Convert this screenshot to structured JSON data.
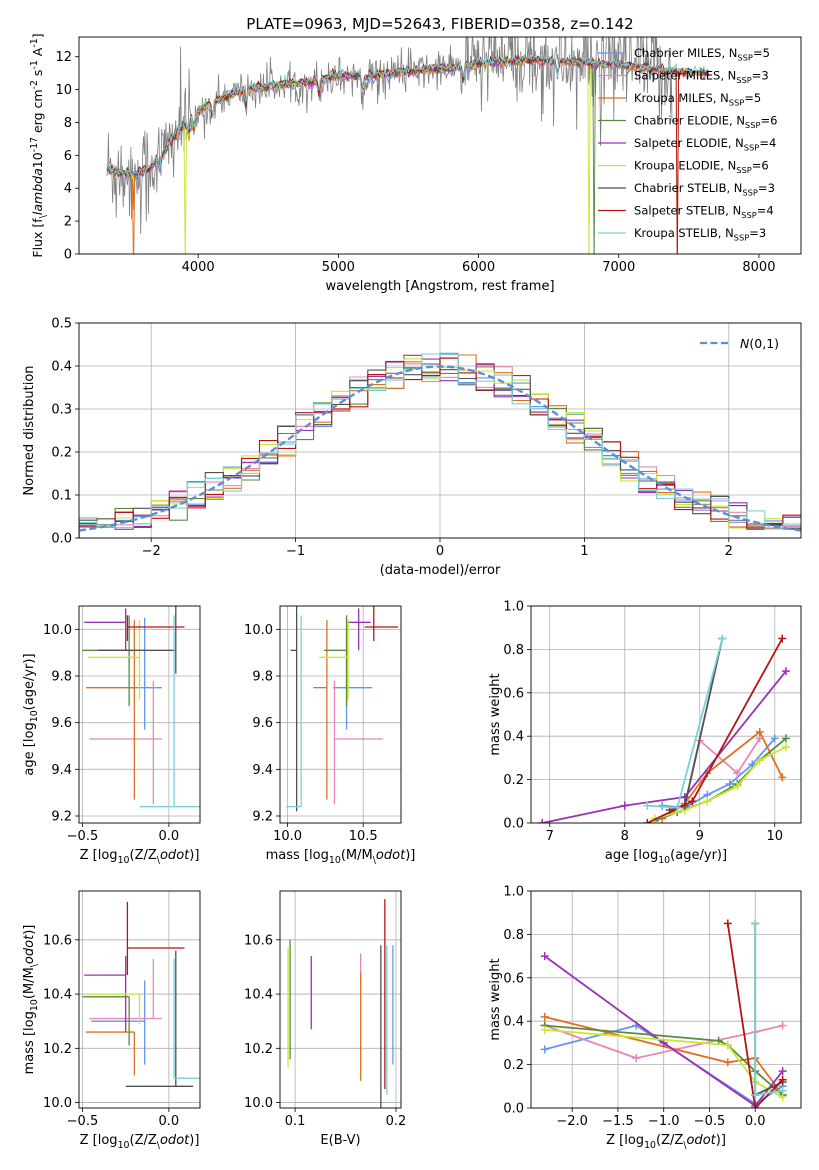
{
  "figure": {
    "title": "PLATE=0963, MJD=52643, FIBERID=0358, z=0.142"
  },
  "colors": {
    "Chabrier MILES": "#6495ed",
    "Salpeter MILES": "#e887b8",
    "Kroupa MILES": "#e07020",
    "Chabrier ELODIE": "#5a8a3c",
    "Salpeter ELODIE": "#9932b4",
    "Kroupa ELODIE": "#c8e632",
    "Chabrier STELIB": "#505050",
    "Salpeter STELIB": "#b41414",
    "Kroupa STELIB": "#78d2d7",
    "normal_fit": "#5b8fd6"
  },
  "chart_data": [
    {
      "id": "spectrum",
      "type": "line",
      "xlabel": "wavelength [Angstrom, rest frame]",
      "ylabel": "Flux [f$_\\lambda$10$^{-17}$ erg cm$^{-2}$ s$^{-1}$ A$^{-1}$]",
      "xlim": [
        3150,
        8300
      ],
      "ylim": [
        0,
        13.2
      ],
      "xticks": [
        4000,
        5000,
        6000,
        7000,
        8000
      ],
      "yticks": [
        0,
        2,
        4,
        6,
        8,
        10,
        12
      ],
      "grid": false,
      "legend_position": "upper right",
      "legend": [
        {
          "label": "Chabrier MILES, N$_{SSP}$=5",
          "model": "Chabrier MILES"
        },
        {
          "label": "Salpeter MILES, N$_{SSP}$=3",
          "model": "Salpeter MILES"
        },
        {
          "label": "Kroupa MILES, N$_{SSP}$=5",
          "model": "Kroupa MILES"
        },
        {
          "label": "Chabrier ELODIE, N$_{SSP}$=6",
          "model": "Chabrier ELODIE"
        },
        {
          "label": "Salpeter ELODIE, N$_{SSP}$=4",
          "model": "Salpeter ELODIE"
        },
        {
          "label": "Kroupa ELODIE, N$_{SSP}$=6",
          "model": "Kroupa ELODIE"
        },
        {
          "label": "Chabrier STELIB, N$_{SSP}$=3",
          "model": "Chabrier STELIB"
        },
        {
          "label": "Salpeter STELIB, N$_{SSP}$=4",
          "model": "Salpeter STELIB"
        },
        {
          "label": "Kroupa STELIB, N$_{SSP}$=3",
          "model": "Kroupa STELIB"
        }
      ],
      "continuum": {
        "x": [
          3350,
          3450,
          3550,
          3650,
          3750,
          3850,
          3950,
          4050,
          4200,
          4400,
          4600,
          4800,
          5000,
          5200,
          5400,
          5600,
          5800,
          6000,
          6200,
          6400,
          6600,
          6800,
          7000,
          7200,
          7400,
          7600
        ],
        "y": [
          5.2,
          4.9,
          4.8,
          5.2,
          6.2,
          7.4,
          8.2,
          9.0,
          9.6,
          10.1,
          10.3,
          10.4,
          10.9,
          10.8,
          11.0,
          11.2,
          11.3,
          11.6,
          11.7,
          11.8,
          11.7,
          11.6,
          11.5,
          11.3,
          11.1,
          11.0
        ]
      },
      "model_range": [
        3350,
        7650
      ],
      "data_range": [
        3350,
        7380
      ]
    },
    {
      "id": "residuals",
      "type": "histogram",
      "xlabel": "(data-model)/error",
      "ylabel": "Normed distribution",
      "xlim": [
        -2.5,
        2.5
      ],
      "ylim": [
        0,
        0.5
      ],
      "xticks": [
        -2,
        -1,
        0,
        1,
        2
      ],
      "yticks": [
        0.0,
        0.1,
        0.2,
        0.3,
        0.4,
        0.5
      ],
      "grid": true,
      "legend_position": "upper right",
      "legend": [
        {
          "label": "$\\mathcal{N}(0,1)$",
          "style": "dashed"
        }
      ],
      "bin_width": 0.125,
      "bin_start": -2.5
    },
    {
      "id": "age_vs_Z",
      "type": "scatter",
      "xlabel": "Z [log$_{10}$(Z/Z$_\\odot$)]",
      "ylabel": "age  [log$_{10}$(age/yr)]",
      "xlim": [
        -0.52,
        0.18
      ],
      "ylim": [
        9.17,
        10.1
      ],
      "xticks": [
        -0.5,
        0.0
      ],
      "yticks": [
        9.2,
        9.4,
        9.6,
        9.8,
        10.0
      ],
      "grid": true,
      "points": [
        {
          "model": "Chabrier MILES",
          "x": -0.14,
          "xerr": [
            0.1,
            0.1
          ],
          "y": 9.75,
          "yerr": [
            0.18,
            0.3
          ]
        },
        {
          "model": "Salpeter MILES",
          "x": -0.09,
          "xerr": [
            0.37,
            0.05
          ],
          "y": 9.53,
          "yerr": [
            0.28,
            0.25
          ]
        },
        {
          "model": "Kroupa MILES",
          "x": -0.2,
          "xerr": [
            0.28,
            0.0
          ],
          "y": 9.75,
          "yerr": [
            0.48,
            0.29
          ]
        },
        {
          "model": "Chabrier ELODIE",
          "x": -0.23,
          "xerr": [
            0.27,
            0.0
          ],
          "y": 9.91,
          "yerr": [
            0.24,
            0.15
          ]
        },
        {
          "model": "Salpeter ELODIE",
          "x": -0.25,
          "xerr": [
            0.24,
            0.0
          ],
          "y": 10.03,
          "yerr": [
            0.12,
            0.06
          ]
        },
        {
          "model": "Kroupa ELODIE",
          "x": -0.17,
          "xerr": [
            0.3,
            0.0
          ],
          "y": 9.88,
          "yerr": [
            0.18,
            0.16
          ]
        },
        {
          "model": "Chabrier STELIB",
          "x": 0.04,
          "xerr": [
            0.45,
            0.0
          ],
          "y": 9.91,
          "yerr": [
            0.1,
            0.21
          ]
        },
        {
          "model": "Salpeter STELIB",
          "x": -0.24,
          "xerr": [
            0.0,
            0.33
          ],
          "y": 10.01,
          "yerr": [
            0.06,
            0.05
          ]
        },
        {
          "model": "Kroupa STELIB",
          "x": 0.03,
          "xerr": [
            0.2,
            0.15
          ],
          "y": 9.24,
          "yerr": [
            0.0,
            0.82
          ]
        }
      ]
    },
    {
      "id": "age_vs_mass",
      "type": "scatter",
      "xlabel": "mass [log$_{10}$(M/M$_\\odot$)]",
      "ylabel": "",
      "xlim": [
        9.95,
        10.75
      ],
      "ylim": [
        9.17,
        10.1
      ],
      "xticks": [
        10.0,
        10.5
      ],
      "yticks": [
        9.2,
        9.4,
        9.6,
        9.8,
        10.0
      ],
      "grid": true,
      "points": [
        {
          "model": "Chabrier MILES",
          "x": 10.39,
          "xerr": [
            0.09,
            0.17
          ],
          "y": 9.75,
          "yerr": [
            0.18,
            0.3
          ]
        },
        {
          "model": "Salpeter MILES",
          "x": 10.31,
          "xerr": [
            0.0,
            0.32
          ],
          "y": 9.53,
          "yerr": [
            0.28,
            0.25
          ]
        },
        {
          "model": "Kroupa MILES",
          "x": 10.26,
          "xerr": [
            0.09,
            0.0
          ],
          "y": 9.75,
          "yerr": [
            0.48,
            0.29
          ]
        },
        {
          "model": "Chabrier ELODIE",
          "x": 10.39,
          "xerr": [
            0.15,
            0.0
          ],
          "y": 9.91,
          "yerr": [
            0.24,
            0.15
          ]
        },
        {
          "model": "Salpeter ELODIE",
          "x": 10.47,
          "xerr": [
            0.07,
            0.08
          ],
          "y": 10.03,
          "yerr": [
            0.12,
            0.06
          ]
        },
        {
          "model": "Kroupa ELODIE",
          "x": 10.4,
          "xerr": [
            0.19,
            0.0
          ],
          "y": 9.88,
          "yerr": [
            0.18,
            0.16
          ]
        },
        {
          "model": "Chabrier STELIB",
          "x": 10.06,
          "xerr": [
            0.04,
            0.0
          ],
          "y": 9.91,
          "yerr": [
            0.69,
            0.21
          ]
        },
        {
          "model": "Salpeter STELIB",
          "x": 10.57,
          "xerr": [
            0.06,
            0.16
          ],
          "y": 10.01,
          "yerr": [
            0.06,
            0.12
          ]
        },
        {
          "model": "Kroupa STELIB",
          "x": 10.09,
          "xerr": [
            0.1,
            0.0
          ],
          "y": 9.24,
          "yerr": [
            0.0,
            0.82
          ]
        }
      ]
    },
    {
      "id": "weight_vs_age",
      "type": "line",
      "xlabel": "age  [log$_{10}$(age/yr)]",
      "ylabel": "mass weight",
      "xlim": [
        6.75,
        10.35
      ],
      "ylim": [
        0,
        1.0
      ],
      "xticks": [
        7,
        8,
        9,
        10
      ],
      "yticks": [
        0.0,
        0.2,
        0.4,
        0.6,
        0.8,
        1.0
      ],
      "grid": true,
      "series": [
        {
          "model": "Chabrier MILES",
          "x": [
            8.5,
            8.8,
            9.1,
            9.4,
            9.7,
            10.0
          ],
          "y": [
            0.08,
            0.07,
            0.13,
            0.18,
            0.27,
            0.39
          ]
        },
        {
          "model": "Salpeter MILES",
          "x": [
            8.8,
            9.0,
            9.5,
            9.8
          ],
          "y": [
            0.08,
            0.38,
            0.23,
            0.39
          ]
        },
        {
          "model": "Kroupa MILES",
          "x": [
            8.5,
            8.8,
            9.1,
            9.8,
            10.1
          ],
          "y": [
            0.02,
            0.09,
            0.23,
            0.42,
            0.21
          ]
        },
        {
          "model": "Chabrier ELODIE",
          "x": [
            8.4,
            8.7,
            9.1,
            9.5,
            9.8,
            10.15
          ],
          "y": [
            0.01,
            0.05,
            0.1,
            0.18,
            0.29,
            0.39
          ]
        },
        {
          "model": "Salpeter ELODIE",
          "x": [
            6.9,
            8.0,
            8.8,
            10.15
          ],
          "y": [
            0.0,
            0.08,
            0.12,
            0.7
          ]
        },
        {
          "model": "Kroupa ELODIE",
          "x": [
            8.4,
            8.8,
            9.1,
            9.5,
            9.8,
            10.15
          ],
          "y": [
            0.02,
            0.06,
            0.1,
            0.17,
            0.29,
            0.35
          ]
        },
        {
          "model": "Chabrier STELIB",
          "x": [
            8.6,
            8.8,
            9.3
          ],
          "y": [
            0.06,
            0.08,
            0.85
          ]
        },
        {
          "model": "Salpeter STELIB",
          "x": [
            8.3,
            8.9,
            10.1
          ],
          "y": [
            0.0,
            0.1,
            0.85
          ]
        },
        {
          "model": "Kroupa STELIB",
          "x": [
            8.3,
            8.7,
            9.3
          ],
          "y": [
            0.08,
            0.07,
            0.85
          ]
        }
      ]
    },
    {
      "id": "mass_vs_Z",
      "type": "scatter",
      "xlabel": "Z [log$_{10}$(Z/Z$_\\odot$)]",
      "ylabel": "mass [log$_{10}$(M/M$_\\odot$)]",
      "xlim": [
        -0.52,
        0.18
      ],
      "ylim": [
        9.98,
        10.78
      ],
      "xticks": [
        -0.5,
        0.0
      ],
      "yticks": [
        10.0,
        10.2,
        10.4,
        10.6
      ],
      "grid": true,
      "points": [
        {
          "model": "Chabrier MILES",
          "x": -0.14,
          "xerr": [
            0.31,
            0.0
          ],
          "y": 10.3,
          "yerr": [
            0.16,
            0.15
          ]
        },
        {
          "model": "Salpeter MILES",
          "x": -0.09,
          "xerr": [
            0.37,
            0.05
          ],
          "y": 10.31,
          "yerr": [
            0.0,
            0.22
          ]
        },
        {
          "model": "Kroupa MILES",
          "x": -0.2,
          "xerr": [
            0.28,
            0.0
          ],
          "y": 10.26,
          "yerr": [
            0.16,
            0.0
          ]
        },
        {
          "model": "Chabrier ELODIE",
          "x": -0.23,
          "xerr": [
            0.27,
            0.0
          ],
          "y": 10.39,
          "yerr": [
            0.18,
            0.0
          ]
        },
        {
          "model": "Salpeter ELODIE",
          "x": -0.25,
          "xerr": [
            0.24,
            0.0
          ],
          "y": 10.47,
          "yerr": [
            0.21,
            0.07
          ]
        },
        {
          "model": "Kroupa ELODIE",
          "x": -0.17,
          "xerr": [
            0.3,
            0.0
          ],
          "y": 10.4,
          "yerr": [
            0.11,
            0.0
          ]
        },
        {
          "model": "Chabrier STELIB",
          "x": 0.04,
          "xerr": [
            0.29,
            0.1
          ],
          "y": 10.06,
          "yerr": [
            0.0,
            0.5
          ]
        },
        {
          "model": "Salpeter STELIB",
          "x": -0.24,
          "xerr": [
            0.0,
            0.33
          ],
          "y": 10.57,
          "yerr": [
            0.1,
            0.17
          ]
        },
        {
          "model": "Kroupa STELIB",
          "x": 0.03,
          "xerr": [
            0.0,
            0.15
          ],
          "y": 10.09,
          "yerr": [
            0.0,
            0.44
          ]
        }
      ]
    },
    {
      "id": "mass_vs_EBV",
      "type": "scatter",
      "xlabel": "E(B-V)",
      "ylabel": "",
      "xlim": [
        0.085,
        0.205
      ],
      "ylim": [
        9.98,
        10.78
      ],
      "xticks": [
        0.1,
        0.2
      ],
      "yticks": [
        10.0,
        10.2,
        10.4,
        10.6
      ],
      "grid": true,
      "points": [
        {
          "model": "Chabrier MILES",
          "x": 0.197,
          "y": 10.36,
          "yerr": [
            0.22,
            0.22
          ]
        },
        {
          "model": "Salpeter MILES",
          "x": 0.165,
          "y": 10.55,
          "yerr": [
            0.1,
            0.0
          ]
        },
        {
          "model": "Kroupa MILES",
          "x": 0.165,
          "y": 10.3,
          "yerr": [
            0.22,
            0.18
          ]
        },
        {
          "model": "Chabrier ELODIE",
          "x": 0.095,
          "y": 10.38,
          "yerr": [
            0.22,
            0.22
          ]
        },
        {
          "model": "Salpeter ELODIE",
          "x": 0.116,
          "y": 10.41,
          "yerr": [
            0.14,
            0.13
          ]
        },
        {
          "model": "Kroupa ELODIE",
          "x": 0.093,
          "y": 10.37,
          "yerr": [
            0.24,
            0.2
          ]
        },
        {
          "model": "Chabrier STELIB",
          "x": 0.185,
          "y": 10.28,
          "yerr": [
            0.3,
            0.3
          ]
        },
        {
          "model": "Salpeter STELIB",
          "x": 0.189,
          "y": 10.49,
          "yerr": [
            0.44,
            0.26
          ]
        },
        {
          "model": "Kroupa STELIB",
          "x": 0.191,
          "y": 10.3,
          "yerr": [
            0.27,
            0.28
          ]
        }
      ]
    },
    {
      "id": "weight_vs_Z",
      "type": "line",
      "xlabel": "Z [log$_{10}$(Z/Z$_\\odot$)]",
      "ylabel": "mass weight",
      "xlim": [
        -2.45,
        0.5
      ],
      "ylim": [
        0,
        1.0
      ],
      "xticks": [
        -2.0,
        -1.5,
        -1.0,
        -0.5,
        0.0
      ],
      "yticks": [
        0.0,
        0.2,
        0.4,
        0.6,
        0.8,
        1.0
      ],
      "grid": true,
      "series": [
        {
          "model": "Chabrier MILES",
          "x": [
            -2.3,
            -1.3,
            0.0,
            0.3
          ],
          "y": [
            0.27,
            0.38,
            0.02,
            0.1
          ]
        },
        {
          "model": "Salpeter MILES",
          "x": [
            -2.3,
            -1.3,
            0.0,
            0.3
          ],
          "y": [
            0.38,
            0.23,
            0.35,
            0.38
          ]
        },
        {
          "model": "Kroupa MILES",
          "x": [
            -2.3,
            -0.3,
            0.0,
            0.3
          ],
          "y": [
            0.42,
            0.21,
            0.23,
            0.06
          ]
        },
        {
          "model": "Chabrier ELODIE",
          "x": [
            -2.3,
            -0.4,
            -0.3,
            0.0,
            0.3
          ],
          "y": [
            0.38,
            0.31,
            0.29,
            0.17,
            0.06
          ]
        },
        {
          "model": "Salpeter ELODIE",
          "x": [
            -2.3,
            -1.0,
            0.0,
            0.3
          ],
          "y": [
            0.7,
            0.3,
            0.01,
            0.17
          ]
        },
        {
          "model": "Kroupa ELODIE",
          "x": [
            -2.3,
            -0.3,
            0.0,
            0.3
          ],
          "y": [
            0.36,
            0.29,
            0.12,
            0.05
          ]
        },
        {
          "model": "Chabrier STELIB",
          "x": [
            0.0,
            0.0,
            0.3
          ],
          "y": [
            0.85,
            0.06,
            0.12
          ]
        },
        {
          "model": "Salpeter STELIB",
          "x": [
            -0.3,
            0.0,
            0.3
          ],
          "y": [
            0.85,
            0.0,
            0.13
          ]
        },
        {
          "model": "Kroupa STELIB",
          "x": [
            0.0,
            0.0,
            0.3
          ],
          "y": [
            0.85,
            0.06,
            0.08
          ]
        }
      ]
    }
  ]
}
